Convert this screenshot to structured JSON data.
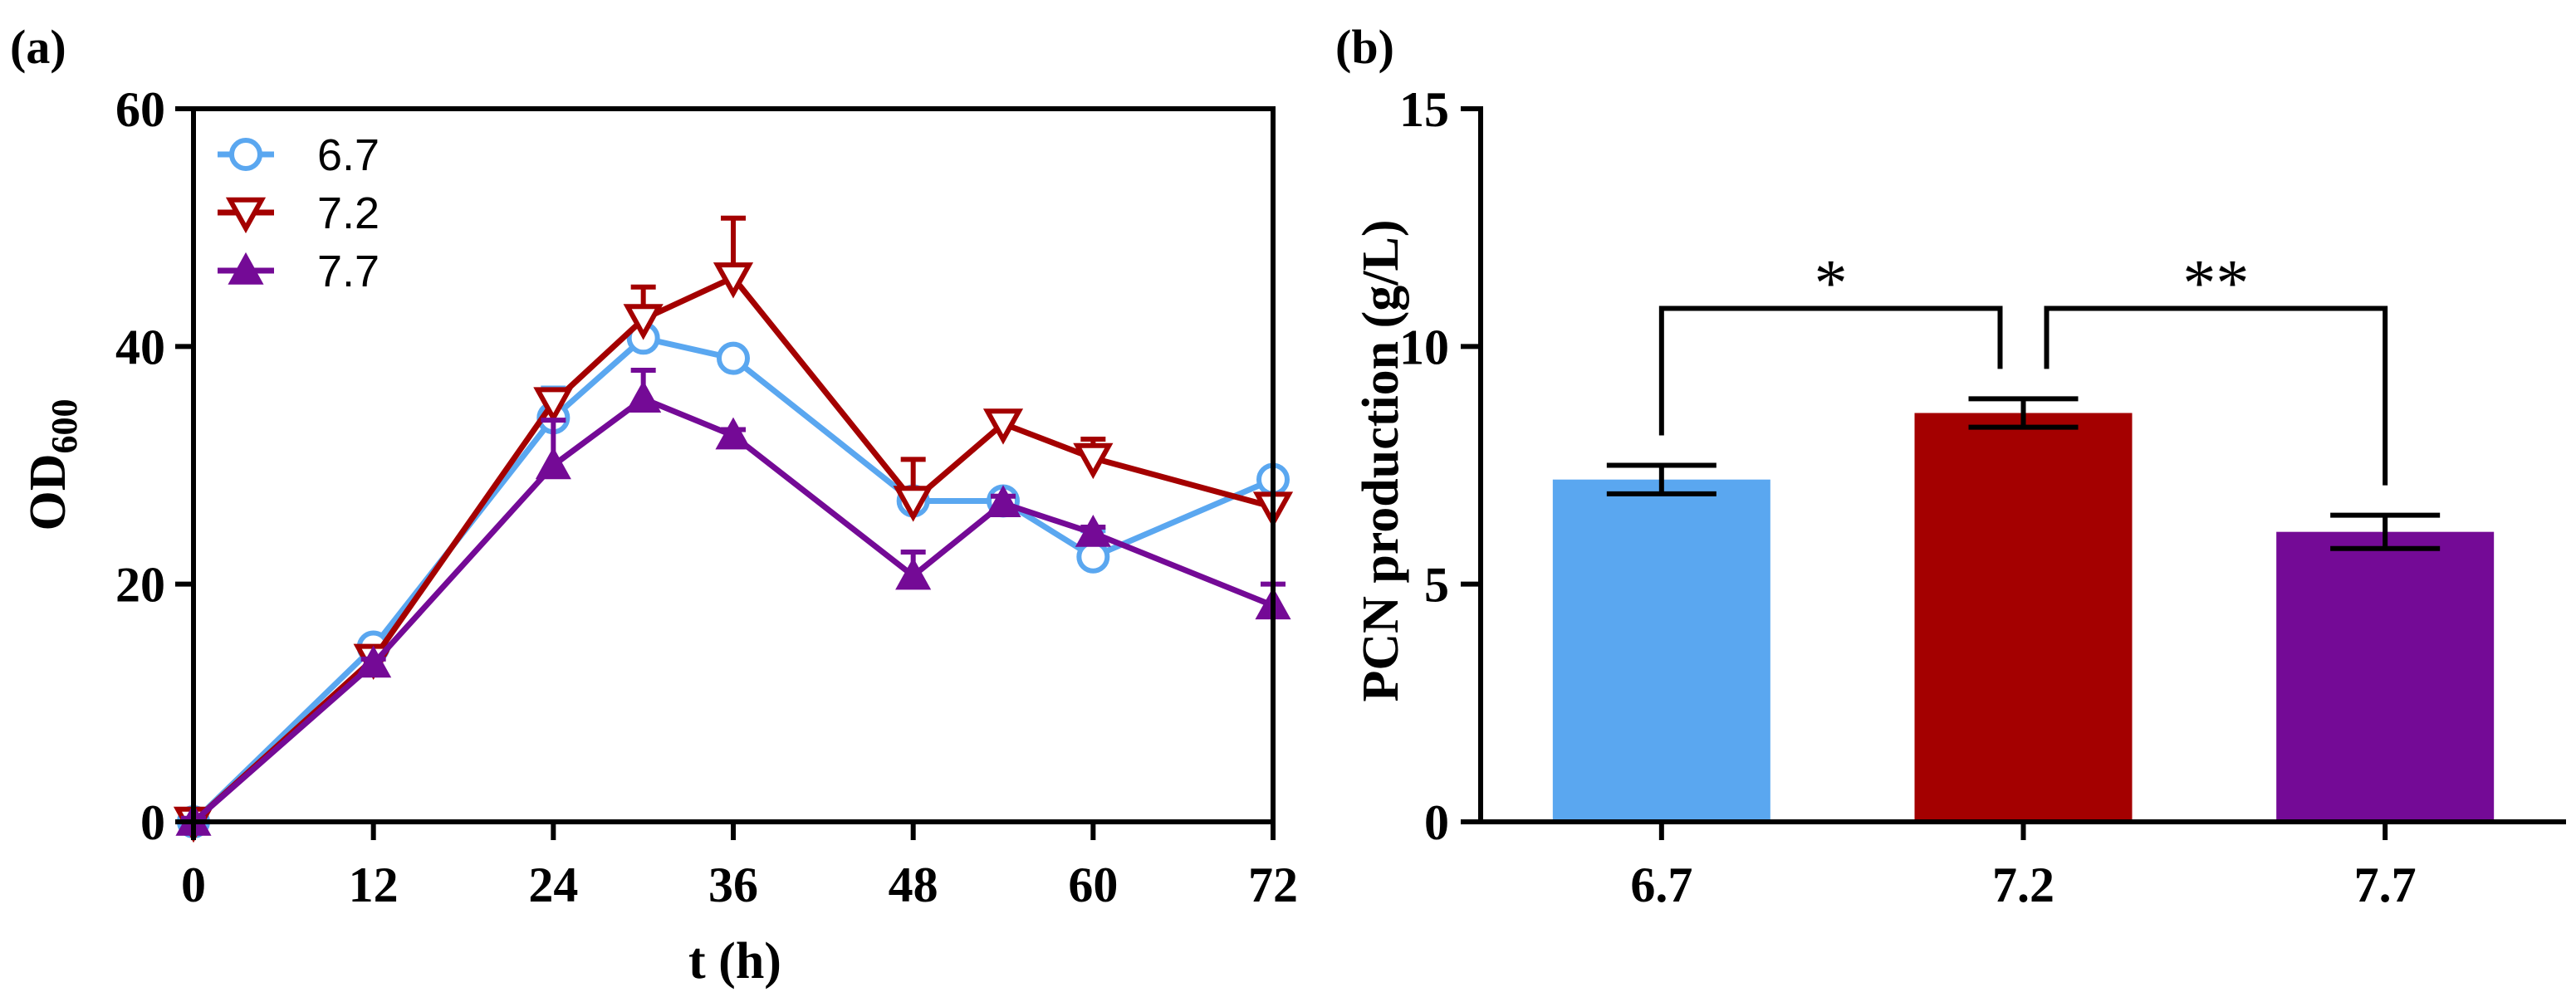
{
  "chart_data": [
    {
      "panel_label": "(a)",
      "type": "line",
      "xlabel": "t (h)",
      "ylabel_main": "OD",
      "ylabel_sub": "600",
      "xlim": [
        0,
        72
      ],
      "ylim": [
        0,
        60
      ],
      "xticks": [
        0,
        12,
        24,
        36,
        48,
        60,
        72
      ],
      "yticks": [
        0,
        20,
        40,
        60
      ],
      "grid": false,
      "legend_position": "top-left",
      "colors": {
        "6.7": "#5aa7f0",
        "7.2": "#a40000",
        "7.7": "#740a96"
      },
      "series": [
        {
          "name": "6.7",
          "marker": "circle-open",
          "x": [
            0,
            12,
            24,
            30,
            36,
            48,
            54,
            60,
            72
          ],
          "y": [
            0,
            14.7,
            34,
            40.7,
            39,
            27,
            27,
            22.3,
            28.8
          ],
          "err": [
            0.3,
            0.5,
            2.5,
            2.5,
            0.6,
            0.5,
            0.5,
            2.2,
            0.5
          ]
        },
        {
          "name": "7.2",
          "marker": "triangle-down-open",
          "x": [
            0,
            12,
            24,
            30,
            36,
            48,
            54,
            60,
            72
          ],
          "y": [
            0,
            13.7,
            35.3,
            42.3,
            45.8,
            27,
            33.5,
            30.6,
            26.5
          ],
          "err": [
            0.3,
            0.4,
            1.0,
            2.7,
            5.0,
            3.5,
            0.6,
            1.6,
            0.4
          ]
        },
        {
          "name": "7.7",
          "marker": "triangle-up-filled",
          "x": [
            0,
            12,
            24,
            30,
            36,
            48,
            54,
            60,
            72
          ],
          "y": [
            0,
            13.3,
            30,
            35.6,
            32.5,
            20.7,
            26.8,
            24.3,
            18.2
          ],
          "err": [
            0.3,
            0.4,
            3.8,
            2.4,
            0.5,
            2.0,
            0.6,
            0.5,
            1.8
          ]
        }
      ]
    },
    {
      "panel_label": "(b)",
      "type": "bar",
      "categories": [
        "6.7",
        "7.2",
        "7.7"
      ],
      "values": [
        7.2,
        8.6,
        6.1
      ],
      "err": [
        0.3,
        0.3,
        0.35
      ],
      "colors": [
        "#5aa7f0",
        "#a40000",
        "#740a96"
      ],
      "ylabel": "PCN production (g/L)",
      "xlabel": "",
      "ylim": [
        0,
        15
      ],
      "yticks": [
        0,
        5,
        10,
        15
      ],
      "grid": false,
      "significance": [
        {
          "from": "6.7",
          "to": "7.2",
          "label": "*",
          "level": 10.8
        },
        {
          "from": "7.2",
          "to": "7.7",
          "label": "**",
          "level": 10.8
        }
      ]
    }
  ]
}
